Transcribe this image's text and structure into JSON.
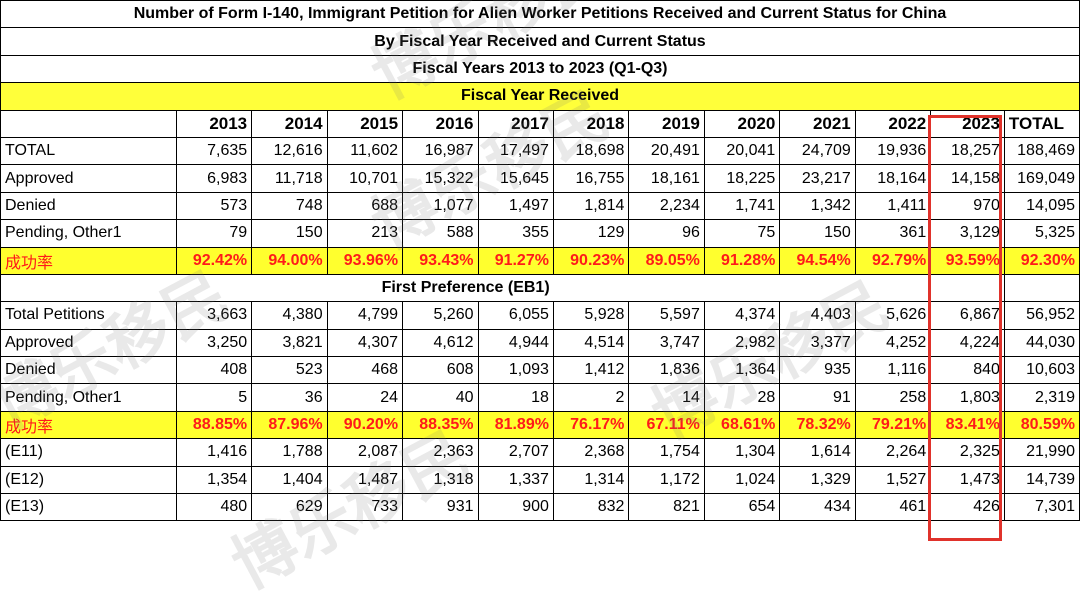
{
  "titles": [
    "Number of Form I-140, Immigrant Petition for Alien Worker Petitions Received and Current Status for China",
    "By Fiscal Year Received and Current Status",
    "Fiscal Years 2013 to 2023 (Q1-Q3)",
    "Fiscal Year Received"
  ],
  "header": [
    "",
    "2013",
    "2014",
    "2015",
    "2016",
    "2017",
    "2018",
    "2019",
    "2020",
    "2021",
    "2022",
    "2023",
    "TOTAL"
  ],
  "section1": [
    {
      "label": "TOTAL",
      "values": [
        "7,635",
        "12,616",
        "11,602",
        "16,987",
        "17,497",
        "18,698",
        "20,491",
        "20,041",
        "24,709",
        "19,936",
        "18,257",
        "188,469"
      ]
    },
    {
      "label": "Approved",
      "values": [
        "6,983",
        "11,718",
        "10,701",
        "15,322",
        "15,645",
        "16,755",
        "18,161",
        "18,225",
        "23,217",
        "18,164",
        "14,158",
        "169,049"
      ]
    },
    {
      "label": "Denied",
      "values": [
        "573",
        "748",
        "688",
        "1,077",
        "1,497",
        "1,814",
        "2,234",
        "1,741",
        "1,342",
        "1,411",
        "970",
        "14,095"
      ]
    },
    {
      "label": "Pending, Other1",
      "values": [
        "79",
        "150",
        "213",
        "588",
        "355",
        "129",
        "96",
        "75",
        "150",
        "361",
        "3,129",
        "5,325"
      ]
    }
  ],
  "rate1": {
    "label": "成功率",
    "values": [
      "92.42%",
      "94.00%",
      "93.96%",
      "93.43%",
      "91.27%",
      "90.23%",
      "89.05%",
      "91.28%",
      "94.54%",
      "92.79%",
      "93.59%",
      "92.30%"
    ]
  },
  "section2_title": "First Preference (EB1)",
  "section2": [
    {
      "label": "Total Petitions",
      "values": [
        "3,663",
        "4,380",
        "4,799",
        "5,260",
        "6,055",
        "5,928",
        "5,597",
        "4,374",
        "4,403",
        "5,626",
        "6,867",
        "56,952"
      ]
    },
    {
      "label": "Approved",
      "values": [
        "3,250",
        "3,821",
        "4,307",
        "4,612",
        "4,944",
        "4,514",
        "3,747",
        "2,982",
        "3,377",
        "4,252",
        "4,224",
        "44,030"
      ]
    },
    {
      "label": "Denied",
      "values": [
        "408",
        "523",
        "468",
        "608",
        "1,093",
        "1,412",
        "1,836",
        "1,364",
        "935",
        "1,116",
        "840",
        "10,603"
      ]
    },
    {
      "label": "Pending, Other1",
      "values": [
        "5",
        "36",
        "24",
        "40",
        "18",
        "2",
        "14",
        "28",
        "91",
        "258",
        "1,803",
        "2,319"
      ]
    }
  ],
  "rate2": {
    "label": "成功率",
    "values": [
      "88.85%",
      "87.96%",
      "90.20%",
      "88.35%",
      "81.89%",
      "76.17%",
      "67.11%",
      "68.61%",
      "78.32%",
      "79.21%",
      "83.41%",
      "80.59%"
    ]
  },
  "section3": [
    {
      "label": "(E11)",
      "values": [
        "1,416",
        "1,788",
        "2,087",
        "2,363",
        "2,707",
        "2,368",
        "1,754",
        "1,304",
        "1,614",
        "2,264",
        "2,325",
        "21,990"
      ]
    },
    {
      "label": "(E12)",
      "values": [
        "1,354",
        "1,404",
        "1,487",
        "1,318",
        "1,337",
        "1,314",
        "1,172",
        "1,024",
        "1,329",
        "1,527",
        "1,473",
        "14,739"
      ]
    },
    {
      "label": "(E13)",
      "values": [
        "480",
        "629",
        "733",
        "931",
        "900",
        "832",
        "821",
        "654",
        "434",
        "461",
        "426",
        "7,301"
      ]
    }
  ],
  "watermark_text": "博乐移民",
  "colors": {
    "highlight": "#ffff2e",
    "rate_text": "#ff1a1a",
    "box": "#e0322b"
  }
}
